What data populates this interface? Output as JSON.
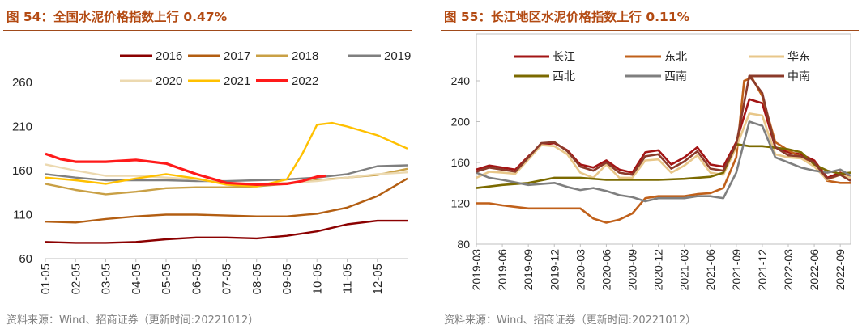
{
  "left": {
    "title": "图 54：全国水泥价格指数上行 0.47%",
    "source": "资料来源：Wind、招商证券（更新时间:20221012）"
  },
  "right": {
    "title": "图 55：长江地区水泥价格指数上行 0.11%",
    "source": "资料来源：Wind、招商证券（更新时间:20221012）"
  },
  "chart_data": [
    {
      "type": "line",
      "title": "图 54：全国水泥价格指数上行 0.47%",
      "x_ticks": [
        "01-05",
        "02-05",
        "03-05",
        "04-05",
        "05-05",
        "06-05",
        "07-05",
        "08-05",
        "09-05",
        "10-05",
        "11-05",
        "12-05"
      ],
      "ylim": [
        60,
        260
      ],
      "y_ticks": [
        60,
        110,
        160,
        210,
        260
      ],
      "x_domain": [
        1,
        13
      ],
      "legend": "top",
      "series": [
        {
          "name": "2016",
          "color": "#8b0000",
          "points": [
            [
              1,
              79
            ],
            [
              2,
              78
            ],
            [
              3,
              78
            ],
            [
              4,
              79
            ],
            [
              5,
              82
            ],
            [
              6,
              84
            ],
            [
              7,
              84
            ],
            [
              8,
              83
            ],
            [
              9,
              86
            ],
            [
              10,
              91
            ],
            [
              11,
              99
            ],
            [
              12,
              103
            ],
            [
              13,
              103
            ]
          ]
        },
        {
          "name": "2017",
          "color": "#b35e12",
          "points": [
            [
              1,
              102
            ],
            [
              2,
              101
            ],
            [
              3,
              105
            ],
            [
              4,
              108
            ],
            [
              5,
              110
            ],
            [
              6,
              110
            ],
            [
              7,
              109
            ],
            [
              8,
              108
            ],
            [
              9,
              108
            ],
            [
              10,
              111
            ],
            [
              11,
              118
            ],
            [
              12,
              131
            ],
            [
              13,
              151
            ]
          ]
        },
        {
          "name": "2018",
          "color": "#c9a045",
          "points": [
            [
              1,
              145
            ],
            [
              2,
              138
            ],
            [
              3,
              133
            ],
            [
              4,
              136
            ],
            [
              5,
              140
            ],
            [
              6,
              141
            ],
            [
              7,
              141
            ],
            [
              8,
              142
            ],
            [
              9,
              145
            ],
            [
              10,
              149
            ],
            [
              11,
              152
            ],
            [
              12,
              155
            ],
            [
              13,
              162
            ]
          ]
        },
        {
          "name": "2019",
          "color": "#7f7f7f",
          "points": [
            [
              1,
              156
            ],
            [
              2,
              152
            ],
            [
              3,
              149
            ],
            [
              4,
              149
            ],
            [
              5,
              149
            ],
            [
              6,
              148
            ],
            [
              7,
              148
            ],
            [
              8,
              149
            ],
            [
              9,
              150
            ],
            [
              10,
              152
            ],
            [
              11,
              156
            ],
            [
              12,
              165
            ],
            [
              13,
              166
            ]
          ]
        },
        {
          "name": "2020",
          "color": "#ecd9b0",
          "points": [
            [
              1,
              167
            ],
            [
              2,
              160
            ],
            [
              3,
              154
            ],
            [
              4,
              154
            ],
            [
              5,
              152
            ],
            [
              6,
              150
            ],
            [
              7,
              146
            ],
            [
              8,
              145
            ],
            [
              9,
              146
            ],
            [
              10,
              148
            ],
            [
              11,
              152
            ],
            [
              12,
              156
            ],
            [
              13,
              158
            ]
          ]
        },
        {
          "name": "2021",
          "color": "#ffc000",
          "points": [
            [
              1,
              152
            ],
            [
              2,
              149
            ],
            [
              3,
              145
            ],
            [
              4,
              151
            ],
            [
              5,
              156
            ],
            [
              6,
              151
            ],
            [
              7,
              144
            ],
            [
              8,
              142
            ],
            [
              9,
              150
            ],
            [
              9.5,
              178
            ],
            [
              10,
              212
            ],
            [
              10.5,
              214
            ],
            [
              11,
              210
            ],
            [
              12,
              200
            ],
            [
              13,
              185
            ]
          ]
        },
        {
          "name": "2022",
          "color": "#ff1a1a",
          "points": [
            [
              1,
              179
            ],
            [
              1.5,
              173
            ],
            [
              2,
              170
            ],
            [
              3,
              170
            ],
            [
              4,
              172
            ],
            [
              5,
              168
            ],
            [
              6,
              156
            ],
            [
              7,
              146
            ],
            [
              8,
              144
            ],
            [
              9,
              145
            ],
            [
              9.5,
              148
            ],
            [
              10,
              153
            ],
            [
              10.3,
              154
            ]
          ]
        }
      ]
    },
    {
      "type": "line",
      "title": "图 55：长江地区水泥价格指数上行 0.11%",
      "x_ticks": [
        "2019-03",
        "2019-06",
        "2019-09",
        "2019-12",
        "2020-03",
        "2020-06",
        "2020-09",
        "2020-12",
        "2021-03",
        "2021-06",
        "2021-09",
        "2021-12",
        "2022-03",
        "2022-06",
        "2022-09"
      ],
      "ylim": [
        80,
        240
      ],
      "y_ticks": [
        80,
        120,
        160,
        200,
        240
      ],
      "x_domain": [
        0,
        14.4
      ],
      "legend": "top",
      "series": [
        {
          "name": "长江",
          "color": "#a31515",
          "points": [
            [
              0,
              153
            ],
            [
              0.5,
              157
            ],
            [
              1,
              155
            ],
            [
              1.5,
              153
            ],
            [
              2,
              166
            ],
            [
              2.5,
              177
            ],
            [
              3,
              179
            ],
            [
              3.5,
              172
            ],
            [
              4,
              158
            ],
            [
              4.5,
              155
            ],
            [
              5,
              162
            ],
            [
              5.5,
              153
            ],
            [
              6,
              150
            ],
            [
              6.5,
              170
            ],
            [
              7,
              172
            ],
            [
              7.5,
              158
            ],
            [
              8,
              165
            ],
            [
              8.5,
              175
            ],
            [
              9,
              158
            ],
            [
              9.5,
              156
            ],
            [
              10,
              180
            ],
            [
              10.5,
              222
            ],
            [
              11,
              218
            ],
            [
              11.5,
              175
            ],
            [
              12,
              170
            ],
            [
              12.5,
              168
            ],
            [
              13,
              162
            ],
            [
              13.5,
              145
            ],
            [
              14,
              150
            ],
            [
              14.4,
              145
            ]
          ]
        },
        {
          "name": "东北",
          "color": "#c0601a",
          "points": [
            [
              0,
              120
            ],
            [
              0.5,
              120
            ],
            [
              1,
              118
            ],
            [
              2,
              115
            ],
            [
              3,
              115
            ],
            [
              4,
              115
            ],
            [
              4.5,
              105
            ],
            [
              5,
              101
            ],
            [
              5.5,
              104
            ],
            [
              6,
              110
            ],
            [
              6.5,
              125
            ],
            [
              7,
              127
            ],
            [
              8,
              127
            ],
            [
              8.5,
              129
            ],
            [
              9,
              130
            ],
            [
              9.5,
              135
            ],
            [
              10,
              165
            ],
            [
              10.3,
              240
            ],
            [
              10.6,
              243
            ],
            [
              11,
              225
            ],
            [
              11.5,
              180
            ],
            [
              12,
              172
            ],
            [
              12.5,
              165
            ],
            [
              13,
              160
            ],
            [
              13.5,
              142
            ],
            [
              14,
              140
            ],
            [
              14.4,
              140
            ]
          ]
        },
        {
          "name": "华东",
          "color": "#e8c78a",
          "points": [
            [
              0,
              145
            ],
            [
              0.5,
              151
            ],
            [
              1,
              150
            ],
            [
              1.5,
              149
            ],
            [
              2,
              163
            ],
            [
              2.5,
              177
            ],
            [
              3,
              176
            ],
            [
              3.5,
              168
            ],
            [
              4,
              150
            ],
            [
              4.5,
              145
            ],
            [
              5,
              158
            ],
            [
              5.5,
              145
            ],
            [
              6,
              145
            ],
            [
              6.5,
              162
            ],
            [
              7,
              163
            ],
            [
              7.5,
              150
            ],
            [
              8,
              157
            ],
            [
              8.5,
              167
            ],
            [
              9,
              150
            ],
            [
              9.5,
              148
            ],
            [
              10,
              175
            ],
            [
              10.5,
              208
            ],
            [
              11,
              206
            ],
            [
              11.5,
              168
            ],
            [
              12,
              165
            ],
            [
              12.5,
              164
            ],
            [
              13,
              156
            ],
            [
              13.5,
              143
            ],
            [
              14,
              148
            ],
            [
              14.4,
              145
            ]
          ]
        },
        {
          "name": "西北",
          "color": "#7b6a00",
          "points": [
            [
              0,
              135
            ],
            [
              1,
              138
            ],
            [
              2,
              140
            ],
            [
              3,
              145
            ],
            [
              4,
              145
            ],
            [
              5,
              143
            ],
            [
              6,
              143
            ],
            [
              7,
              143
            ],
            [
              8,
              144
            ],
            [
              9,
              146
            ],
            [
              9.5,
              150
            ],
            [
              10,
              178
            ],
            [
              10.5,
              176
            ],
            [
              11,
              176
            ],
            [
              12,
              173
            ],
            [
              12.5,
              170
            ],
            [
              13,
              158
            ],
            [
              13.5,
              152
            ],
            [
              14,
              149
            ],
            [
              14.4,
              150
            ]
          ]
        },
        {
          "name": "西南",
          "color": "#7f7f7f",
          "points": [
            [
              0,
              150
            ],
            [
              0.5,
              145
            ],
            [
              1,
              143
            ],
            [
              2,
              138
            ],
            [
              3,
              140
            ],
            [
              3.5,
              136
            ],
            [
              4,
              133
            ],
            [
              4.5,
              135
            ],
            [
              5,
              132
            ],
            [
              5.5,
              128
            ],
            [
              6,
              126
            ],
            [
              6.5,
              122
            ],
            [
              7,
              125
            ],
            [
              8,
              125
            ],
            [
              8.5,
              127
            ],
            [
              9,
              127
            ],
            [
              9.5,
              125
            ],
            [
              10,
              150
            ],
            [
              10.5,
              200
            ],
            [
              11,
              196
            ],
            [
              11.5,
              165
            ],
            [
              12,
              160
            ],
            [
              12.5,
              155
            ],
            [
              13,
              152
            ],
            [
              13.5,
              150
            ],
            [
              14,
              153
            ],
            [
              14.4,
              147
            ]
          ]
        },
        {
          "name": "中南",
          "color": "#8b3a2a",
          "points": [
            [
              0,
              151
            ],
            [
              0.5,
              155
            ],
            [
              1,
              153
            ],
            [
              1.5,
              151
            ],
            [
              2,
              165
            ],
            [
              2.5,
              179
            ],
            [
              3,
              180
            ],
            [
              3.5,
              171
            ],
            [
              4,
              156
            ],
            [
              4.5,
              152
            ],
            [
              5,
              160
            ],
            [
              5.5,
              150
            ],
            [
              6,
              148
            ],
            [
              6.5,
              166
            ],
            [
              7,
              168
            ],
            [
              7.5,
              154
            ],
            [
              8,
              161
            ],
            [
              8.5,
              171
            ],
            [
              9,
              154
            ],
            [
              9.5,
              152
            ],
            [
              10,
              178
            ],
            [
              10.5,
              245
            ],
            [
              11,
              228
            ],
            [
              11.5,
              175
            ],
            [
              12,
              167
            ],
            [
              12.5,
              166
            ],
            [
              13,
              160
            ],
            [
              13.5,
              144
            ],
            [
              14,
              148
            ],
            [
              14.4,
              142
            ]
          ]
        }
      ]
    }
  ]
}
